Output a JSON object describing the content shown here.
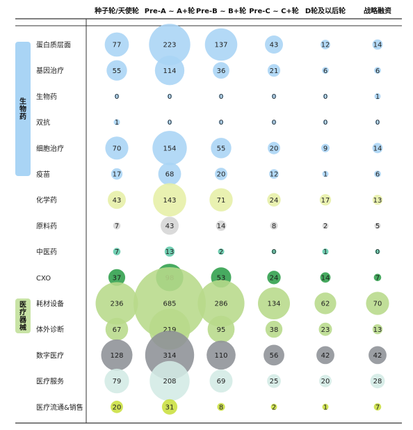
{
  "chart_data": {
    "type": "bubble-matrix",
    "columns": [
      "种子轮/天使轮",
      "Pre-A ~ A+轮",
      "Pre-B ~ B+轮",
      "Pre-C ~ C+轮",
      "D轮及以后轮",
      "战略融资"
    ],
    "groups": [
      {
        "name": "生物药",
        "color": "#a9d4f5",
        "rows": [
          "蛋白质层面",
          "基因治疗",
          "生物药",
          "双抗",
          "细胞治疗",
          "疫苗"
        ]
      },
      {
        "name": "医疗器械",
        "color": "#c8e3a5",
        "rows": [
          "耗材设备",
          "体外诊断"
        ]
      }
    ],
    "rows": [
      {
        "label": "蛋白质层面",
        "color": "#a9d4f5",
        "values": [
          77,
          223,
          137,
          43,
          12,
          14
        ]
      },
      {
        "label": "基因治疗",
        "color": "#a9d4f5",
        "values": [
          55,
          114,
          36,
          21,
          6,
          6
        ]
      },
      {
        "label": "生物药",
        "color": "#a9d4f5",
        "values": [
          0,
          0,
          0,
          0,
          0,
          1
        ]
      },
      {
        "label": "双抗",
        "color": "#a9d4f5",
        "values": [
          1,
          0,
          0,
          0,
          0,
          0
        ]
      },
      {
        "label": "细胞治疗",
        "color": "#a9d4f5",
        "values": [
          70,
          154,
          55,
          20,
          9,
          14
        ]
      },
      {
        "label": "疫苗",
        "color": "#a9d4f5",
        "values": [
          17,
          68,
          20,
          12,
          1,
          6
        ]
      },
      {
        "label": "化学药",
        "color": "#e6efa6",
        "values": [
          43,
          143,
          71,
          24,
          17,
          13
        ]
      },
      {
        "label": "原料药",
        "color": "#d5d5d5",
        "values": [
          7,
          43,
          14,
          8,
          2,
          5
        ]
      },
      {
        "label": "中医药",
        "color": "#5fc8a8",
        "values": [
          7,
          13,
          2,
          0,
          1,
          0
        ]
      },
      {
        "label": "CXO",
        "color": "#2e9e4a",
        "values": [
          37,
          98,
          53,
          24,
          14,
          7
        ]
      },
      {
        "label": "耗材设备",
        "color": "#b7d98a",
        "values": [
          236,
          685,
          286,
          134,
          62,
          70
        ]
      },
      {
        "label": "体外诊断",
        "color": "#b7d98a",
        "values": [
          67,
          219,
          95,
          38,
          23,
          13
        ]
      },
      {
        "label": "数字医疗",
        "color": "#8d9196",
        "values": [
          128,
          314,
          110,
          56,
          42,
          42
        ]
      },
      {
        "label": "医疗服务",
        "color": "#d3ebe5",
        "values": [
          79,
          208,
          69,
          25,
          20,
          28
        ]
      },
      {
        "label": "医疗流通&销售",
        "color": "#c9df3e",
        "values": [
          20,
          31,
          8,
          2,
          1,
          7
        ]
      }
    ]
  }
}
